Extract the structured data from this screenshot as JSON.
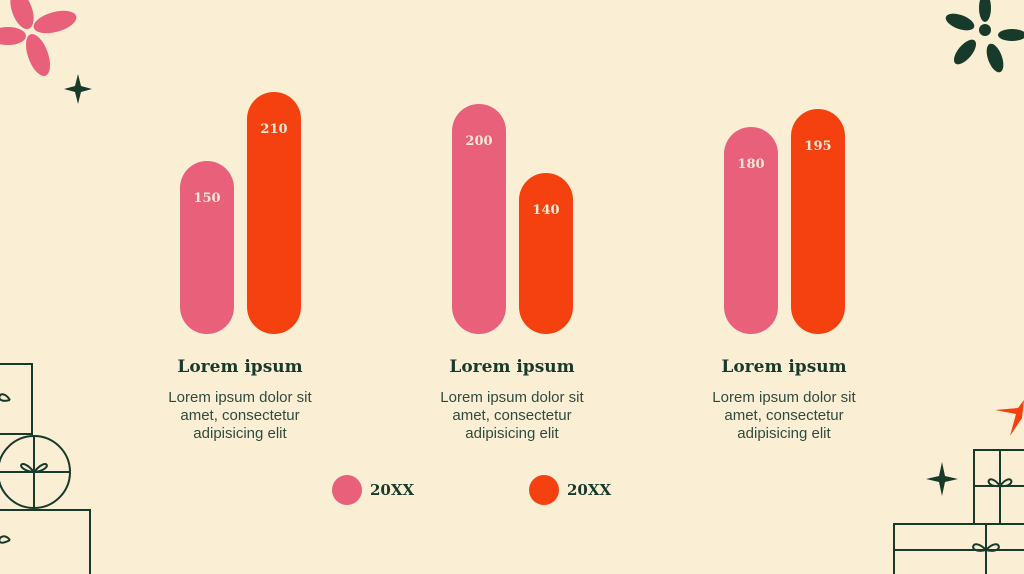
{
  "chart_data": {
    "type": "bar",
    "categories": [
      "Lorem ipsum",
      "Lorem ipsum",
      "Lorem ipsum"
    ],
    "descriptions": [
      "Lorem ipsum dolor sit amet, consectetur adipisicing elit",
      "Lorem ipsum dolor sit amet, consectetur adipisicing elit",
      "Lorem ipsum dolor sit amet, consectetur adipisicing elit"
    ],
    "series": [
      {
        "name": "20XX",
        "color": "#e9607a",
        "values": [
          150,
          200,
          180
        ]
      },
      {
        "name": "20XX",
        "color": "#f5410f",
        "values": [
          210,
          140,
          195
        ]
      }
    ]
  }
}
